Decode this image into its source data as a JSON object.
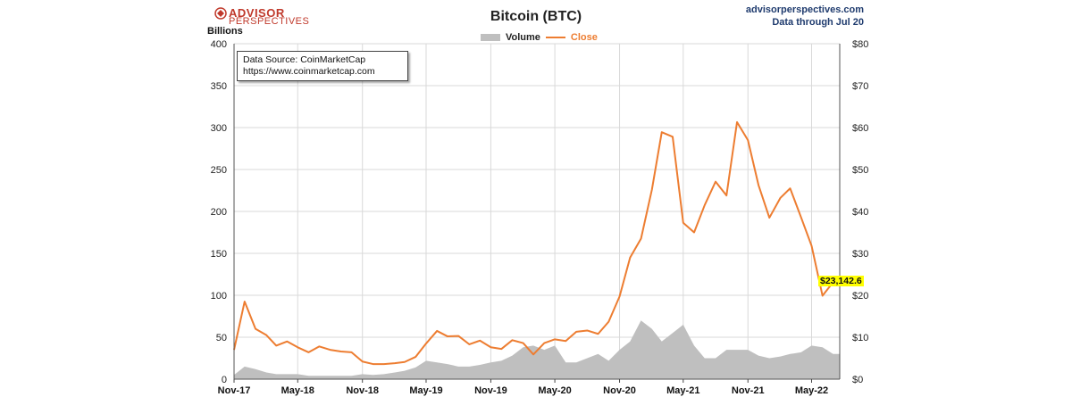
{
  "header": {
    "brand_line1": "ADVISOR",
    "brand_line2": "PERSPECTIVES",
    "site": "advisorperspectives.com",
    "data_through": "Data through Jul 20"
  },
  "source_box": {
    "line1": "Data Source: CoinMarketCap",
    "line2": "https://www.coinmarketcap.com"
  },
  "colors": {
    "close": "#ed7d31",
    "volume": "#bfbfbf",
    "grid": "#d9d9d9",
    "highlight": "#ffff00"
  },
  "chart_data": {
    "type": "line",
    "title": "Bitcoin (BTC)",
    "left_axis_label": "Billions",
    "legend": [
      "Volume",
      "Close"
    ],
    "legend_placement": "top-center",
    "grid": true,
    "y_left": {
      "min": 0,
      "max": 400,
      "ticks": [
        "0",
        "50",
        "100",
        "150",
        "200",
        "250",
        "300",
        "350",
        "400"
      ]
    },
    "y_right": {
      "min": 0,
      "max": 80,
      "ticks": [
        "$0",
        "$10",
        "$20",
        "$30",
        "$40",
        "$50",
        "$60",
        "$70",
        "$80"
      ]
    },
    "x_range": [
      "2017-11",
      "2022-07-20"
    ],
    "x_ticks": [
      "Nov-17",
      "May-18",
      "Nov-18",
      "May-19",
      "Nov-19",
      "May-20",
      "Nov-20",
      "May-21",
      "Nov-21",
      "May-22"
    ],
    "last_value_label": "$23,142.6",
    "series": [
      {
        "name": "Close",
        "axis": "right",
        "unit": "USD thousands",
        "x": [
          "2017-11",
          "2017-12",
          "2018-01",
          "2018-02",
          "2018-03",
          "2018-04",
          "2018-05",
          "2018-06",
          "2018-07",
          "2018-08",
          "2018-09",
          "2018-10",
          "2018-11",
          "2018-12",
          "2019-01",
          "2019-02",
          "2019-03",
          "2019-04",
          "2019-05",
          "2019-06",
          "2019-07",
          "2019-08",
          "2019-09",
          "2019-10",
          "2019-11",
          "2019-12",
          "2020-01",
          "2020-02",
          "2020-03",
          "2020-04",
          "2020-05",
          "2020-06",
          "2020-07",
          "2020-08",
          "2020-09",
          "2020-10",
          "2020-11",
          "2020-12",
          "2021-01",
          "2021-02",
          "2021-03",
          "2021-04",
          "2021-05",
          "2021-06",
          "2021-07",
          "2021-08",
          "2021-09",
          "2021-10",
          "2021-11",
          "2021-12",
          "2022-01",
          "2022-02",
          "2022-03",
          "2022-04",
          "2022-05",
          "2022-06",
          "2022-07"
        ],
        "values": [
          7.0,
          18.5,
          12.0,
          10.5,
          8.0,
          9.0,
          7.6,
          6.4,
          7.8,
          7.0,
          6.6,
          6.4,
          4.2,
          3.6,
          3.6,
          3.8,
          4.1,
          5.3,
          8.5,
          11.5,
          10.2,
          10.3,
          8.3,
          9.2,
          7.6,
          7.2,
          9.3,
          8.6,
          5.9,
          8.6,
          9.5,
          9.1,
          11.3,
          11.6,
          10.8,
          13.7,
          19.7,
          29.0,
          33.5,
          45.2,
          58.9,
          57.8,
          37.3,
          35.0,
          41.5,
          47.1,
          43.8,
          61.3,
          57.0,
          46.3,
          38.5,
          43.2,
          45.5,
          38.6,
          31.8,
          19.9,
          23.1
        ]
      },
      {
        "name": "Volume",
        "axis": "left",
        "unit": "USD billions",
        "x": [
          "2017-11",
          "2017-12",
          "2018-01",
          "2018-02",
          "2018-03",
          "2018-04",
          "2018-05",
          "2018-06",
          "2018-07",
          "2018-08",
          "2018-09",
          "2018-10",
          "2018-11",
          "2018-12",
          "2019-01",
          "2019-02",
          "2019-03",
          "2019-04",
          "2019-05",
          "2019-06",
          "2019-07",
          "2019-08",
          "2019-09",
          "2019-10",
          "2019-11",
          "2019-12",
          "2020-01",
          "2020-02",
          "2020-03",
          "2020-04",
          "2020-05",
          "2020-06",
          "2020-07",
          "2020-08",
          "2020-09",
          "2020-10",
          "2020-11",
          "2020-12",
          "2021-01",
          "2021-02",
          "2021-03",
          "2021-04",
          "2021-05",
          "2021-06",
          "2021-07",
          "2021-08",
          "2021-09",
          "2021-10",
          "2021-11",
          "2021-12",
          "2022-01",
          "2022-02",
          "2022-03",
          "2022-04",
          "2022-05",
          "2022-06",
          "2022-07"
        ],
        "values": [
          5,
          15,
          12,
          8,
          6,
          6,
          6,
          4,
          4,
          4,
          4,
          4,
          6,
          5,
          6,
          8,
          10,
          14,
          22,
          20,
          18,
          15,
          15,
          17,
          20,
          22,
          28,
          38,
          40,
          35,
          40,
          20,
          20,
          25,
          30,
          22,
          35,
          45,
          70,
          60,
          45,
          55,
          65,
          40,
          25,
          25,
          35,
          35,
          35,
          28,
          25,
          27,
          30,
          32,
          40,
          38,
          30
        ]
      }
    ]
  }
}
